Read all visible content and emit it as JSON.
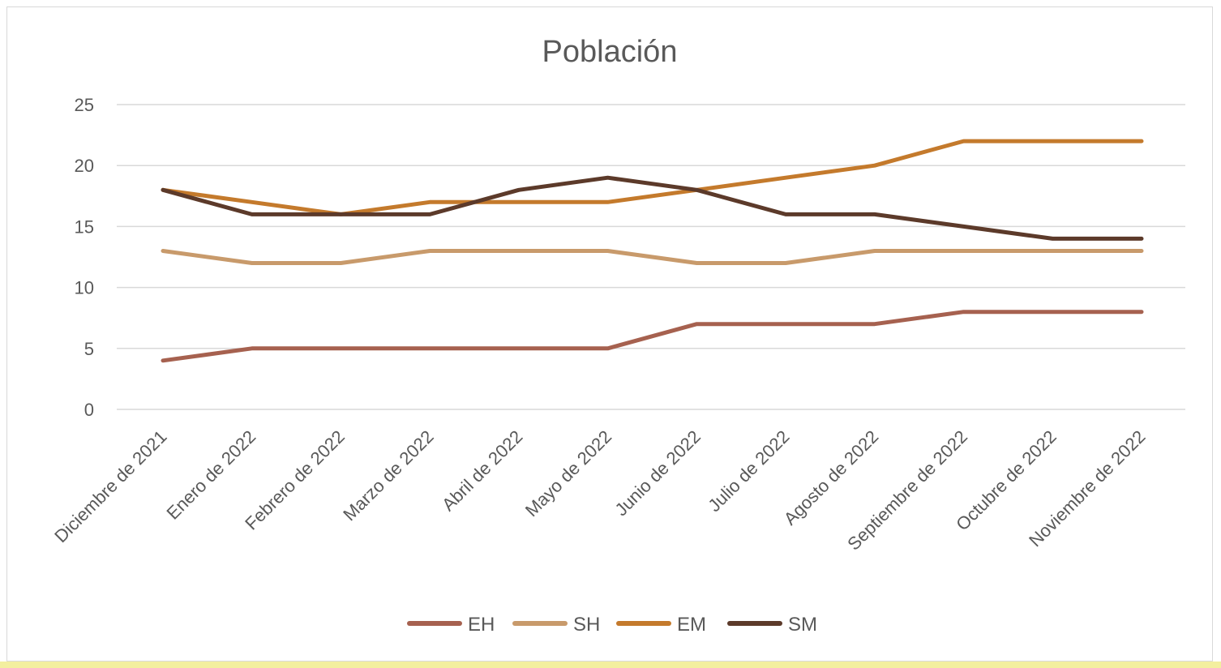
{
  "chart_data": {
    "type": "line",
    "title": "Población",
    "xlabel": "",
    "ylabel": "",
    "ylim": [
      0,
      25
    ],
    "yticks": [
      0,
      5,
      10,
      15,
      20,
      25
    ],
    "grid": true,
    "legend_position": "bottom",
    "categories": [
      "Diciembre de 2021",
      "Enero de 2022",
      "Febrero de 2022",
      "Marzo de 2022",
      "Abril de 2022",
      "Mayo de 2022",
      "Junio de 2022",
      "Julio de 2022",
      "Agosto de 2022",
      "Septiembre de 2022",
      "Octubre de 2022",
      "Noviembre de 2022"
    ],
    "series": [
      {
        "name": "EH",
        "color": "#a6614f",
        "values": [
          4,
          5,
          5,
          5,
          5,
          5,
          7,
          7,
          7,
          8,
          8,
          8
        ]
      },
      {
        "name": "SH",
        "color": "#c89a6b",
        "values": [
          13,
          12,
          12,
          13,
          13,
          13,
          12,
          12,
          13,
          13,
          13,
          13
        ]
      },
      {
        "name": "EM",
        "color": "#c47a2c",
        "values": [
          18,
          17,
          16,
          17,
          17,
          17,
          18,
          19,
          20,
          22,
          22,
          22
        ]
      },
      {
        "name": "SM",
        "color": "#5c3a2a",
        "values": [
          18,
          16,
          16,
          16,
          18,
          19,
          18,
          16,
          16,
          15,
          14,
          14
        ]
      }
    ]
  }
}
